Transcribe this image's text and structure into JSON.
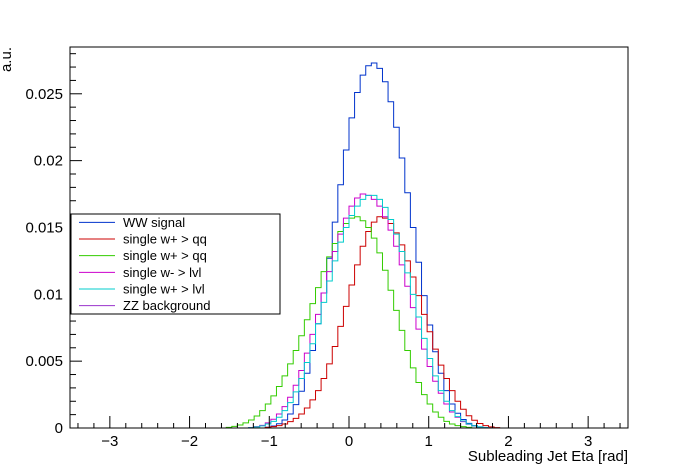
{
  "chart_data": {
    "type": "line",
    "title": "",
    "xlabel": "Subleading Jet Eta [rad]",
    "ylabel": "a.u.",
    "xlim": [
      -3.5,
      3.5
    ],
    "ylim": [
      0,
      0.0285
    ],
    "x_ticks": [
      -3,
      -2,
      -1,
      0,
      1,
      2,
      3
    ],
    "x_tick_labels": [
      "−3",
      "−2",
      "−1",
      "0",
      "1",
      "2",
      "3"
    ],
    "y_ticks": [
      0,
      0.005,
      0.01,
      0.015,
      0.02,
      0.025
    ],
    "y_tick_labels": [
      "0",
      "0.005",
      "0.01",
      "0.015",
      "0.02",
      "0.025"
    ],
    "grid": false,
    "legend_position": "left-middle",
    "bins": {
      "start": -3.5,
      "width": 0.07,
      "count": 100
    },
    "series": [
      {
        "name": "WW signal",
        "color": "#0033cc",
        "values": [
          0,
          0,
          0,
          0,
          0,
          0,
          0,
          0,
          0,
          0,
          0,
          0,
          0,
          0,
          0,
          0,
          0,
          0,
          0,
          0,
          0,
          0,
          0,
          0,
          0,
          0,
          0,
          0,
          0,
          0,
          0,
          0,
          0,
          0,
          0,
          6e-05,
          0.00015,
          0.00032,
          0.0006,
          0.00105,
          0.00175,
          0.00275,
          0.0041,
          0.0058,
          0.0078,
          0.0101,
          0.0127,
          0.0154,
          0.0182,
          0.0208,
          0.0232,
          0.0251,
          0.0264,
          0.0271,
          0.0273,
          0.0269,
          0.0259,
          0.0244,
          0.0225,
          0.0202,
          0.0176,
          0.015,
          0.0124,
          0.0099,
          0.0077,
          0.0057,
          0.0041,
          0.0028,
          0.0018,
          0.0011,
          0.00064,
          0.00035,
          0.00018,
          8e-05,
          3e-05,
          0,
          0,
          0,
          0,
          0,
          0,
          0,
          0,
          0,
          0,
          0,
          0,
          0,
          0,
          0,
          0,
          0,
          0,
          0,
          0,
          0,
          0,
          0,
          0,
          0
        ]
      },
      {
        "name": "single w+ > qq",
        "color": "#cc0000",
        "values": [
          0,
          0,
          0,
          0,
          0,
          0,
          0,
          0,
          0,
          0,
          0,
          0,
          0,
          0,
          0,
          0,
          0,
          0,
          0,
          0,
          0,
          0,
          0,
          0,
          0,
          0,
          0,
          0,
          0,
          0,
          0,
          0,
          0,
          0,
          0,
          5e-05,
          0.0001,
          0.00018,
          0.0003,
          0.00048,
          0.00072,
          0.00105,
          0.0015,
          0.0021,
          0.0028,
          0.0037,
          0.0048,
          0.0061,
          0.0076,
          0.0091,
          0.0107,
          0.0122,
          0.0136,
          0.0147,
          0.0154,
          0.0158,
          0.0157,
          0.0153,
          0.0146,
          0.0137,
          0.0125,
          0.0113,
          0.0099,
          0.0085,
          0.0072,
          0.0059,
          0.0047,
          0.0037,
          0.0028,
          0.002,
          0.0014,
          0.00092,
          0.00058,
          0.00034,
          0.00018,
          8e-05,
          3e-05,
          0,
          0,
          0,
          0,
          0,
          0,
          0,
          0,
          0,
          0,
          0,
          0,
          0,
          0,
          0,
          0,
          0,
          0,
          0,
          0,
          0,
          0,
          0
        ]
      },
      {
        "name": "single w+ > qq",
        "color": "#33cc00",
        "values": [
          0,
          0,
          0,
          0,
          0,
          0,
          0,
          0,
          0,
          0,
          0,
          0,
          0,
          0,
          0,
          0,
          0,
          0,
          0,
          0,
          0,
          0,
          0,
          0,
          0,
          0,
          0,
          0,
          5e-05,
          0.00012,
          0.00022,
          0.00038,
          0.0006,
          0.0009,
          0.0013,
          0.0018,
          0.0024,
          0.0031,
          0.0039,
          0.0048,
          0.0058,
          0.0069,
          0.0081,
          0.0093,
          0.0105,
          0.0117,
          0.0128,
          0.0138,
          0.0147,
          0.0153,
          0.0157,
          0.0158,
          0.0155,
          0.015,
          0.0142,
          0.0131,
          0.0118,
          0.0103,
          0.0088,
          0.0073,
          0.0058,
          0.0045,
          0.0034,
          0.0025,
          0.0018,
          0.0012,
          0.0008,
          0.0005,
          0.0003,
          0.00018,
          0.0001,
          5e-05,
          0,
          0,
          0,
          0,
          0,
          0,
          0,
          0,
          0,
          0,
          0,
          0,
          0,
          0,
          0,
          0,
          0,
          0,
          0,
          0,
          0,
          0,
          0,
          0,
          0,
          0,
          0,
          0
        ]
      },
      {
        "name": "single w- > lvl",
        "color": "#cc00cc",
        "values": [
          0,
          0,
          0,
          0,
          0,
          0,
          0,
          0,
          0,
          0,
          0,
          0,
          0,
          0,
          0,
          0,
          0,
          0,
          0,
          0,
          0,
          0,
          0,
          0,
          0,
          0,
          0,
          0,
          0,
          0,
          0,
          0,
          4e-05,
          0.0001,
          0.0002,
          0.00038,
          0.00065,
          0.00105,
          0.0016,
          0.0023,
          0.0032,
          0.0043,
          0.0056,
          0.007,
          0.0085,
          0.0101,
          0.0117,
          0.0132,
          0.0145,
          0.0157,
          0.0166,
          0.0172,
          0.0175,
          0.0174,
          0.0171,
          0.0166,
          0.0158,
          0.0148,
          0.0136,
          0.0122,
          0.0106,
          0.009,
          0.0074,
          0.0059,
          0.0046,
          0.0035,
          0.0026,
          0.0018,
          0.0012,
          0.0008,
          0.00048,
          0.00028,
          0.00015,
          7e-05,
          3e-05,
          0,
          0,
          0,
          0,
          0,
          0,
          0,
          0,
          0,
          0,
          0,
          0,
          0,
          0,
          0,
          0,
          0,
          0,
          0,
          0,
          0,
          0,
          0,
          0,
          0
        ]
      },
      {
        "name": "single w+ > lvl",
        "color": "#00cccc",
        "values": [
          0,
          0,
          0,
          0,
          0,
          0,
          0,
          0,
          0,
          0,
          0,
          0,
          0,
          0,
          0,
          0,
          0,
          0,
          0,
          0,
          0,
          0,
          0,
          0,
          0,
          0,
          0,
          0,
          0,
          0,
          0,
          0,
          3e-05,
          8e-05,
          0.00016,
          0.0003,
          0.0005,
          0.0008,
          0.0013,
          0.0019,
          0.0027,
          0.0037,
          0.0049,
          0.0063,
          0.0078,
          0.0094,
          0.011,
          0.0125,
          0.0139,
          0.015,
          0.0159,
          0.0166,
          0.0171,
          0.0174,
          0.0174,
          0.0171,
          0.0165,
          0.0156,
          0.0145,
          0.0132,
          0.0116,
          0.01,
          0.0083,
          0.0067,
          0.0052,
          0.0039,
          0.0028,
          0.002,
          0.0013,
          0.00085,
          0.00052,
          0.0003,
          0.00016,
          8e-05,
          3e-05,
          0,
          0,
          0,
          0,
          0,
          0,
          0,
          0,
          0,
          0,
          0,
          0,
          0,
          0,
          0,
          0,
          0,
          0,
          0,
          0,
          0,
          0,
          0,
          0,
          0
        ]
      },
      {
        "name": "ZZ background",
        "color": "#9933cc",
        "values": []
      }
    ]
  }
}
